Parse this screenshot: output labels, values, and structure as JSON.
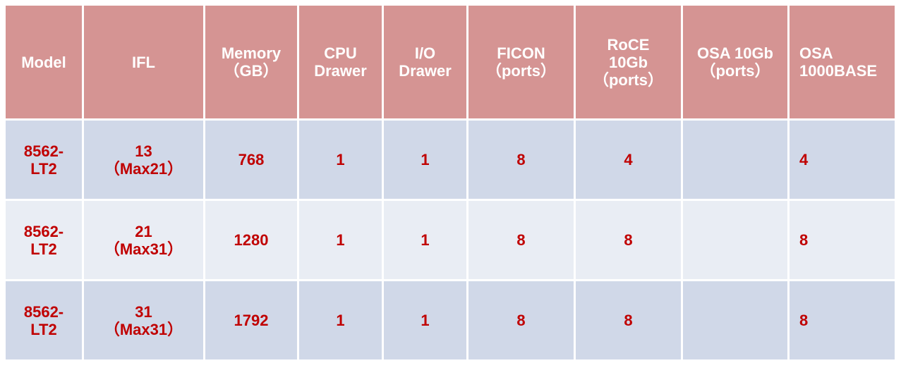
{
  "colors": {
    "header_bg": "#d59493",
    "header_text": "#ffffff",
    "row_odd_bg": "#d0d8e8",
    "row_even_bg": "#e9edf4",
    "cell_text": "#c00000"
  },
  "table": {
    "headers": [
      "Model",
      "IFL",
      "Memory\n（GB）",
      "CPU\nDrawer",
      "I/O\nDrawer",
      "FICON\n（ports）",
      "RoCE\n10Gb\n（ports）",
      "OSA 10Gb\n（ports）",
      "OSA\n1000BASE"
    ],
    "rows": [
      [
        "8562-\nLT2",
        "13\n（Max21）",
        "768",
        "1",
        "1",
        "8",
        "4",
        "",
        "4"
      ],
      [
        "8562-\nLT2",
        "21\n（Max31）",
        "1280",
        "1",
        "1",
        "8",
        "8",
        "",
        "8"
      ],
      [
        "8562-\nLT2",
        "31\n（Max31）",
        "1792",
        "1",
        "1",
        "8",
        "8",
        "",
        "8"
      ]
    ]
  }
}
